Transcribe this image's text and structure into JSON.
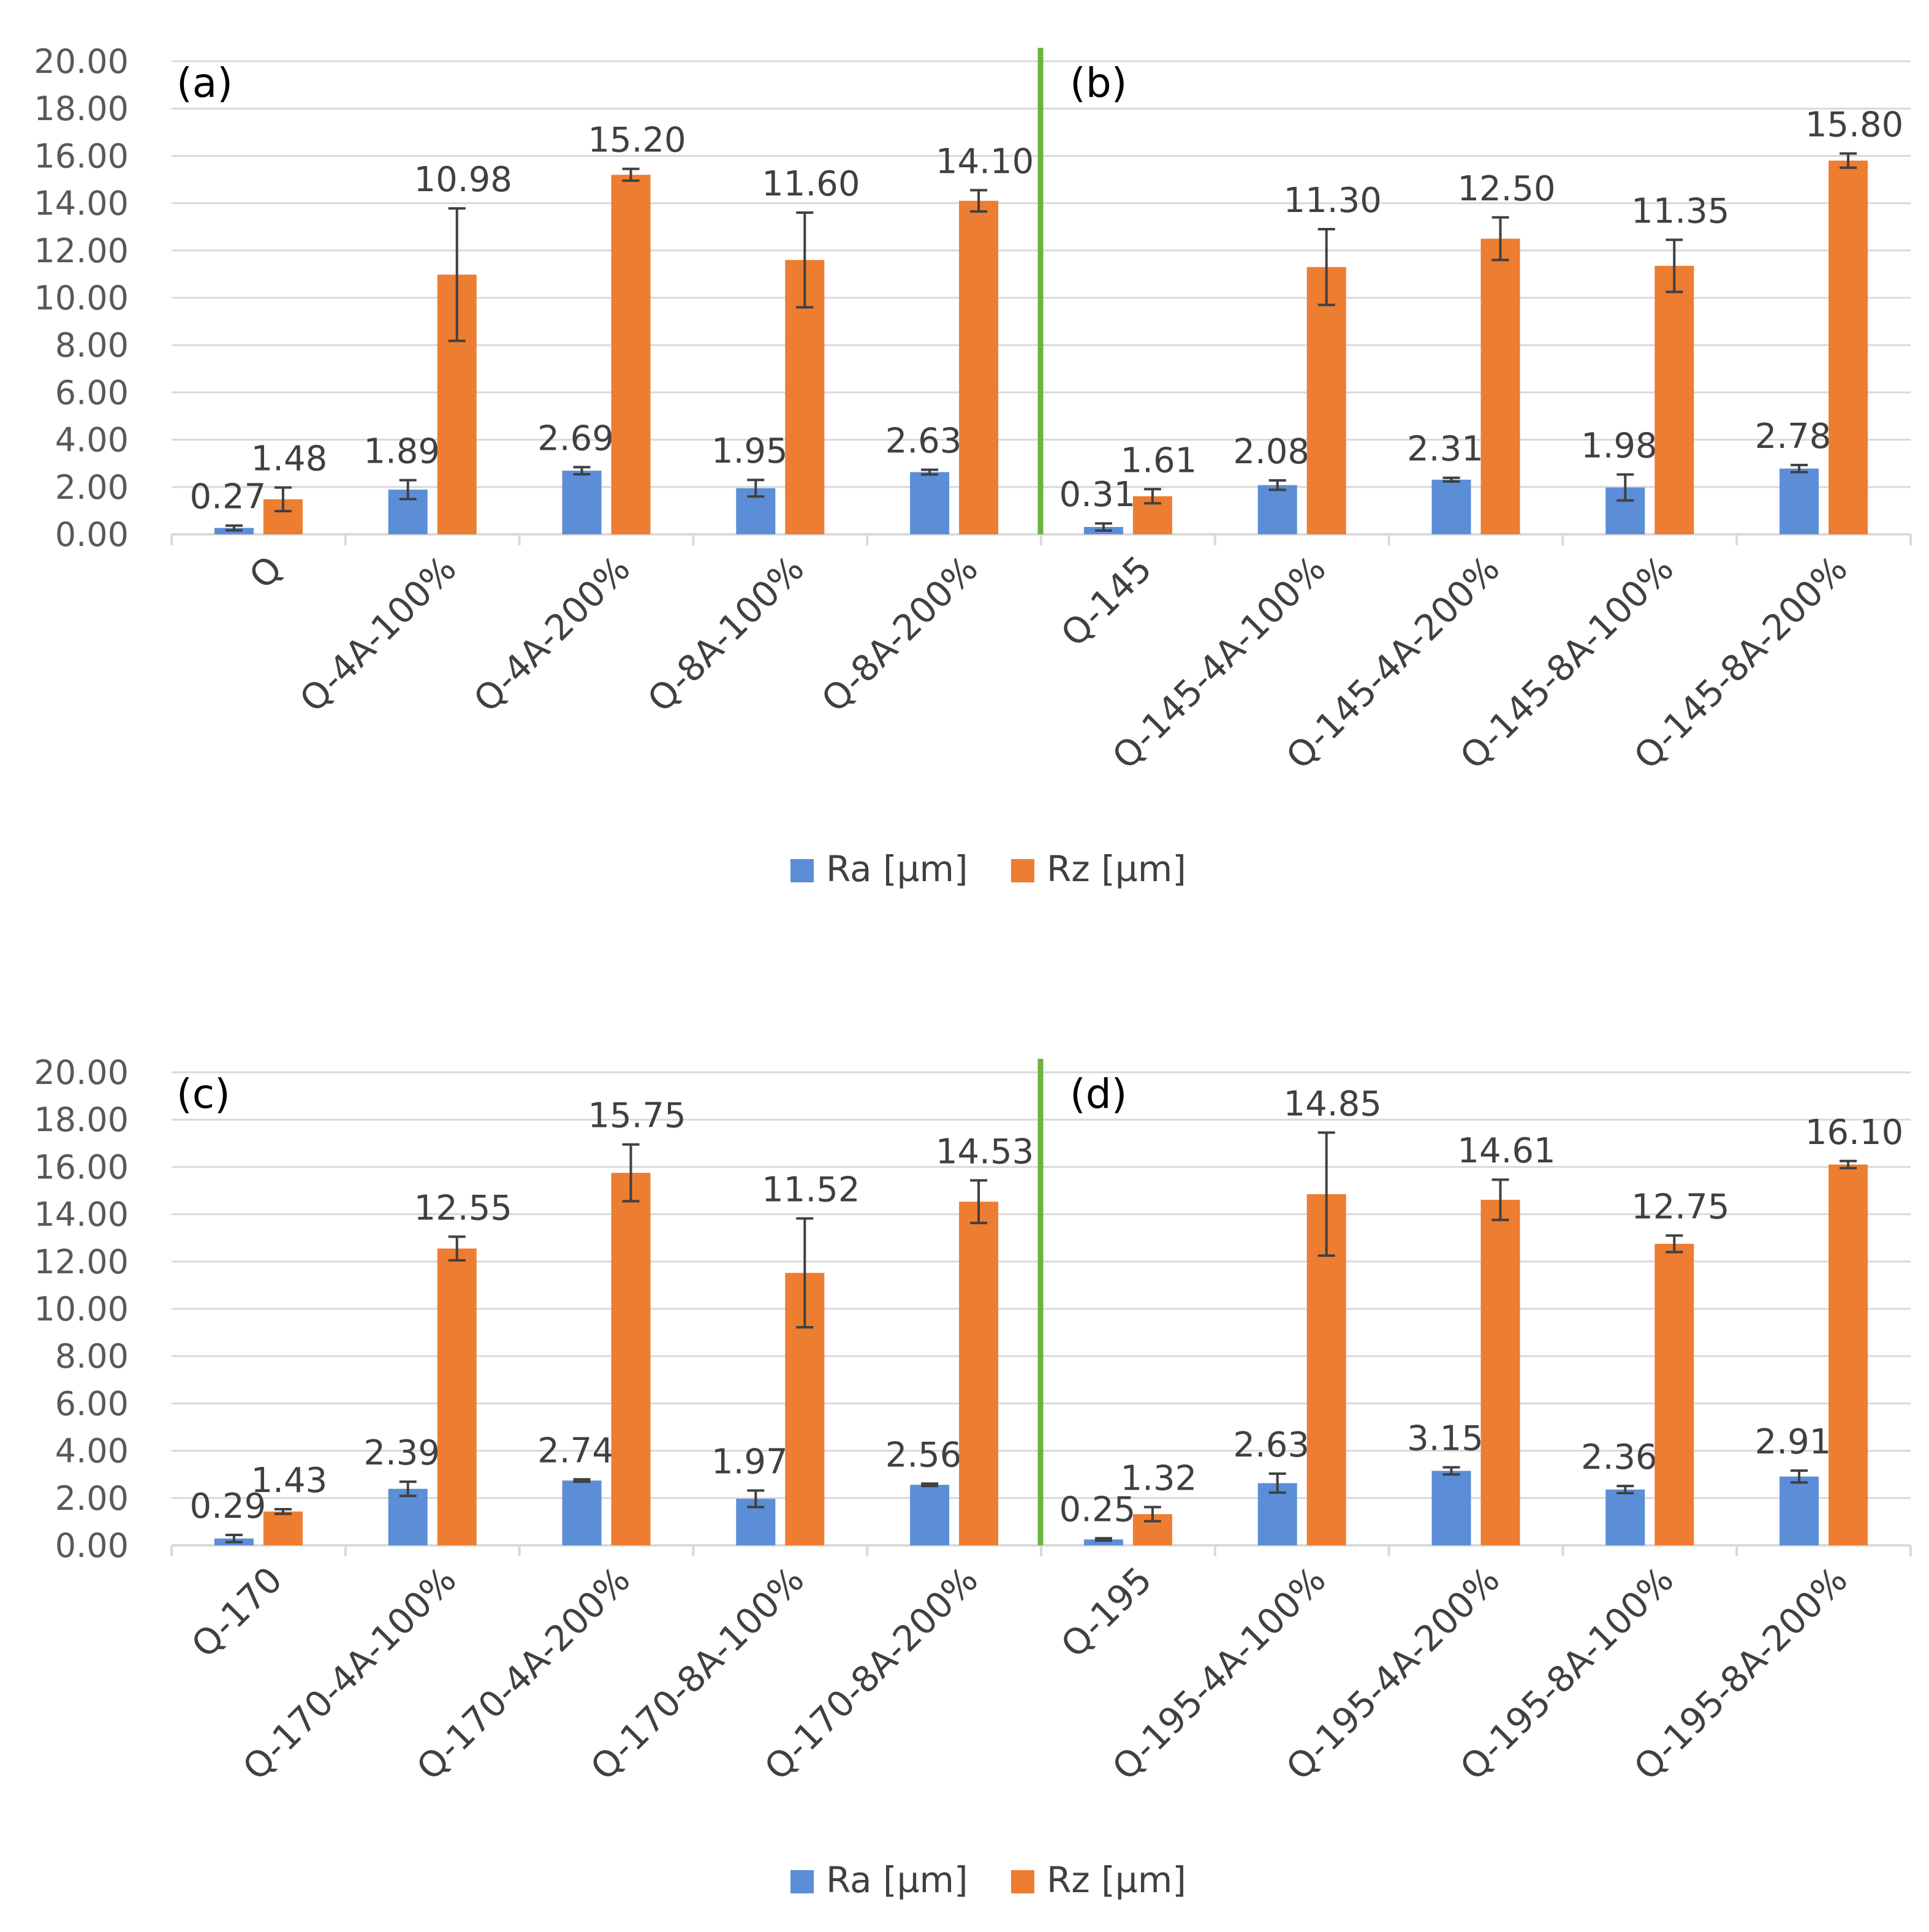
{
  "colors": {
    "ra": "#5B8ED6",
    "rz": "#ED7D31",
    "divider": "#6CB33F",
    "grid": "#D9D9D9",
    "axis_text": "#595959",
    "label_text": "#404040",
    "error": "#404040"
  },
  "legend": {
    "ra": "Ra [µm]",
    "rz": "Rz [µm]"
  },
  "chart_data": [
    {
      "type": "bar",
      "ylim": [
        0,
        20
      ],
      "yticks": [
        "0.00",
        "2.00",
        "4.00",
        "6.00",
        "8.00",
        "10.00",
        "12.00",
        "14.00",
        "16.00",
        "18.00",
        "20.00"
      ],
      "panels": [
        {
          "label": "(a)",
          "categories": [
            "Q",
            "Q-4A-100%",
            "Q-4A-200%",
            "Q-8A-100%",
            "Q-8A-200%"
          ],
          "series": [
            {
              "name": "Ra [µm]",
              "values": [
                0.27,
                1.89,
                2.69,
                1.95,
                2.63
              ],
              "labels": [
                "0.27",
                "1.89",
                "2.69",
                "1.95",
                "2.63"
              ],
              "errors": [
                0.1,
                0.4,
                0.15,
                0.35,
                0.1
              ]
            },
            {
              "name": "Rz [µm]",
              "values": [
                1.48,
                10.98,
                15.2,
                11.6,
                14.1
              ],
              "labels": [
                "1.48",
                "10.98",
                "15.20",
                "11.60",
                "14.10"
              ],
              "errors": [
                0.5,
                2.8,
                0.25,
                2.0,
                0.45
              ]
            }
          ]
        },
        {
          "label": "(b)",
          "categories": [
            "Q-145",
            "Q-145-4A-100%",
            "Q-145-4A-200%",
            "Q-145-8A-100%",
            "Q-145-8A-200%"
          ],
          "series": [
            {
              "name": "Ra [µm]",
              "values": [
                0.31,
                2.08,
                2.31,
                1.98,
                2.78
              ],
              "labels": [
                "0.31",
                "2.08",
                "2.31",
                "1.98",
                "2.78"
              ],
              "errors": [
                0.15,
                0.2,
                0.08,
                0.55,
                0.15
              ]
            },
            {
              "name": "Rz [µm]",
              "values": [
                1.61,
                11.3,
                12.5,
                11.35,
                15.8
              ],
              "labels": [
                "1.61",
                "11.30",
                "12.50",
                "11.35",
                "15.80"
              ],
              "errors": [
                0.3,
                1.6,
                0.9,
                1.1,
                0.3
              ]
            }
          ]
        }
      ]
    },
    {
      "type": "bar",
      "ylim": [
        0,
        20
      ],
      "yticks": [
        "0.00",
        "2.00",
        "4.00",
        "6.00",
        "8.00",
        "10.00",
        "12.00",
        "14.00",
        "16.00",
        "18.00",
        "20.00"
      ],
      "panels": [
        {
          "label": "(c)",
          "categories": [
            "Q-170",
            "Q-170-4A-100%",
            "Q-170-4A-200%",
            "Q-170-8A-100%",
            "Q-170-8A-200%"
          ],
          "series": [
            {
              "name": "Ra [µm]",
              "values": [
                0.29,
                2.39,
                2.74,
                1.97,
                2.56
              ],
              "labels": [
                "0.29",
                "2.39",
                "2.74",
                "1.97",
                "2.56"
              ],
              "errors": [
                0.15,
                0.3,
                0.05,
                0.35,
                0.05
              ]
            },
            {
              "name": "Rz [µm]",
              "values": [
                1.43,
                12.55,
                15.75,
                11.52,
                14.53
              ],
              "labels": [
                "1.43",
                "12.55",
                "15.75",
                "11.52",
                "14.53"
              ],
              "errors": [
                0.1,
                0.5,
                1.2,
                2.3,
                0.9
              ]
            }
          ]
        },
        {
          "label": "(d)",
          "categories": [
            "Q-195",
            "Q-195-4A-100%",
            "Q-195-4A-200%",
            "Q-195-8A-100%",
            "Q-195-8A-200%"
          ],
          "series": [
            {
              "name": "Ra [µm]",
              "values": [
                0.25,
                2.63,
                3.15,
                2.36,
                2.91
              ],
              "labels": [
                "0.25",
                "2.63",
                "3.15",
                "2.36",
                "2.91"
              ],
              "errors": [
                0.05,
                0.4,
                0.15,
                0.15,
                0.25
              ]
            },
            {
              "name": "Rz [µm]",
              "values": [
                1.32,
                14.85,
                14.61,
                12.75,
                16.1
              ],
              "labels": [
                "1.32",
                "14.85",
                "14.61",
                "12.75",
                "16.10"
              ],
              "errors": [
                0.3,
                2.6,
                0.85,
                0.35,
                0.15
              ]
            }
          ]
        }
      ]
    }
  ]
}
